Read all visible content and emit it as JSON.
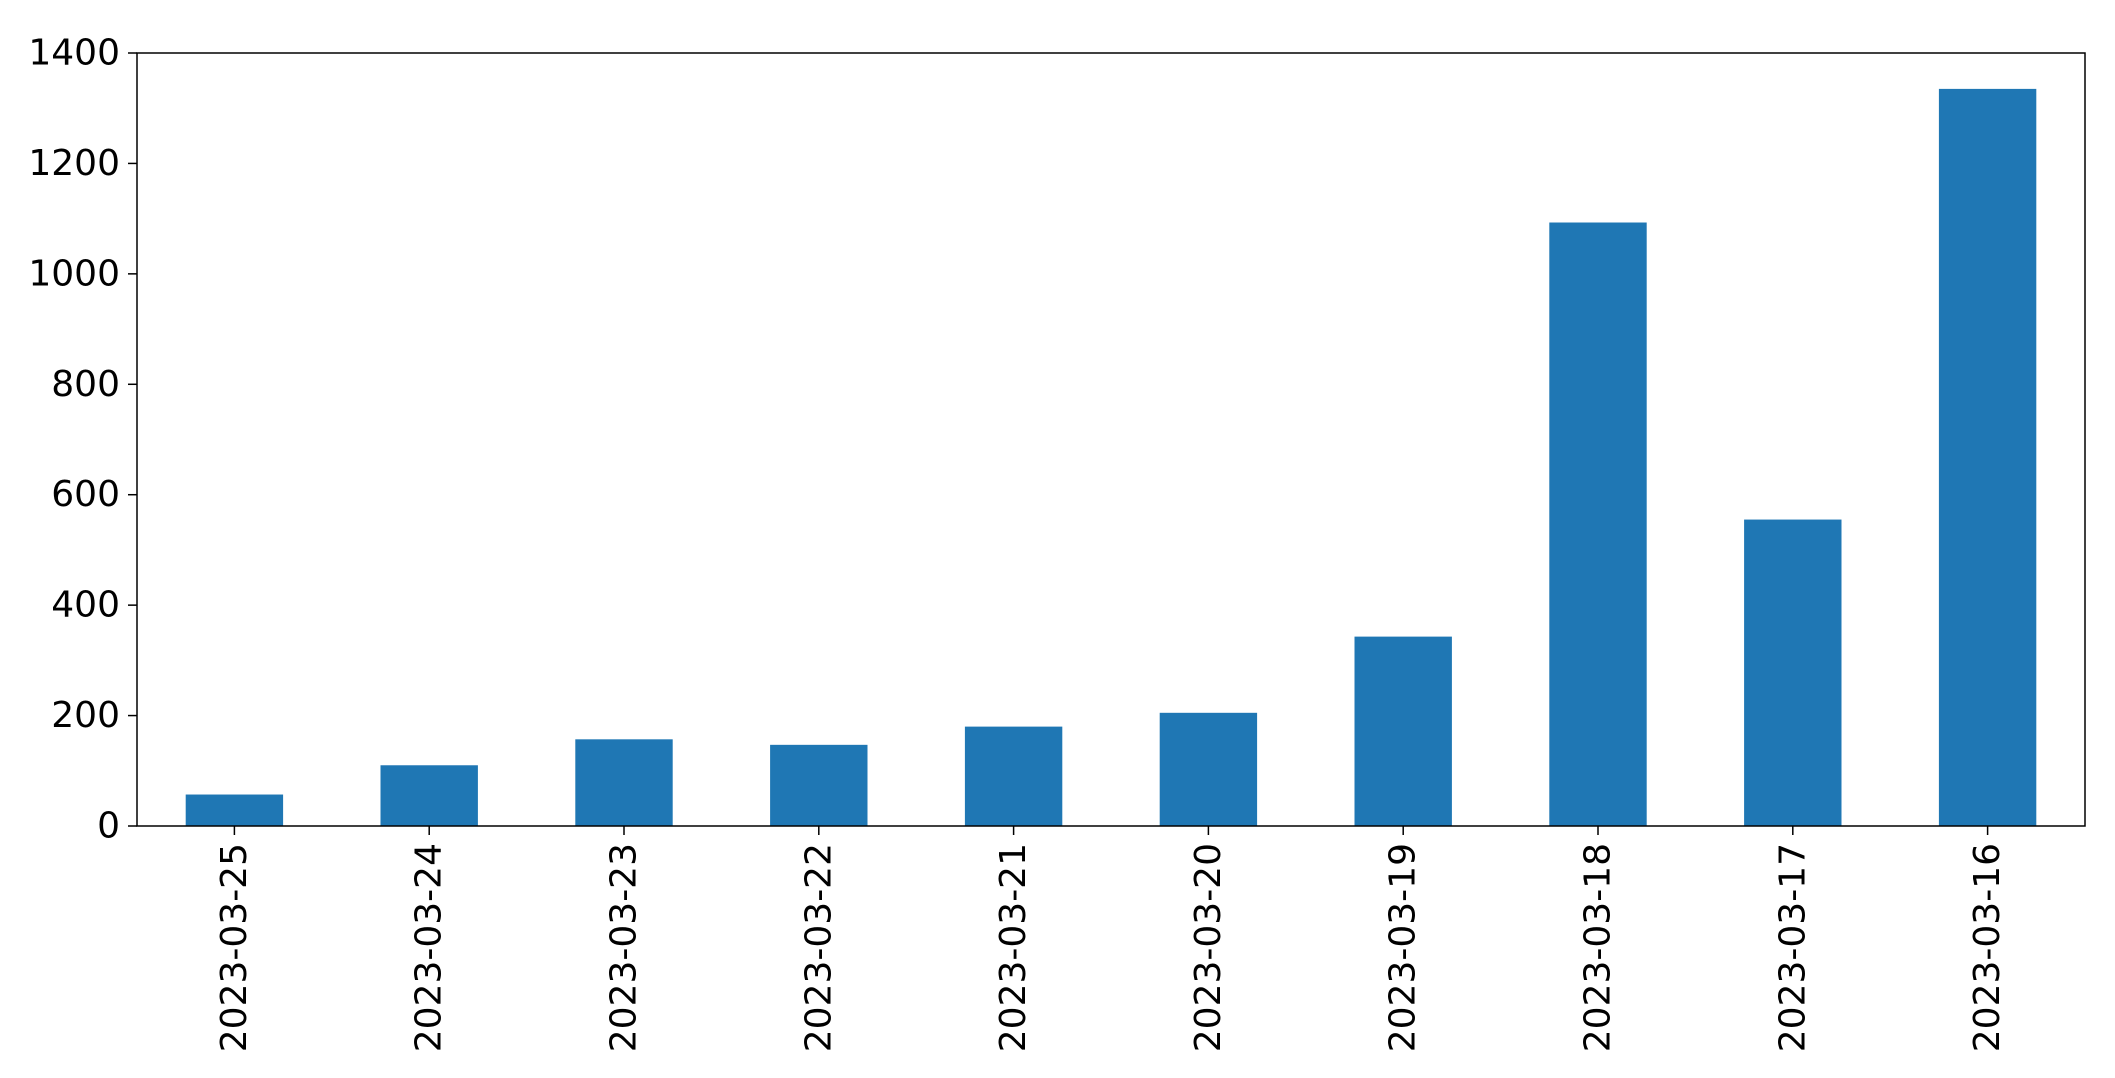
{
  "chart_data": {
    "type": "bar",
    "title": "",
    "xlabel": "",
    "ylabel": "",
    "categories": [
      "2023-03-25",
      "2023-03-24",
      "2023-03-23",
      "2023-03-22",
      "2023-03-21",
      "2023-03-20",
      "2023-03-19",
      "2023-03-18",
      "2023-03-17",
      "2023-03-16"
    ],
    "values": [
      57,
      110,
      157,
      147,
      180,
      205,
      343,
      1093,
      555,
      1335
    ],
    "ylim": [
      0,
      1400
    ],
    "yticks": [
      0,
      200,
      400,
      600,
      800,
      1000,
      1200,
      1400
    ],
    "grid": false,
    "legend": "none",
    "bar_color": "#1f77b4",
    "axis_color": "#000000"
  }
}
